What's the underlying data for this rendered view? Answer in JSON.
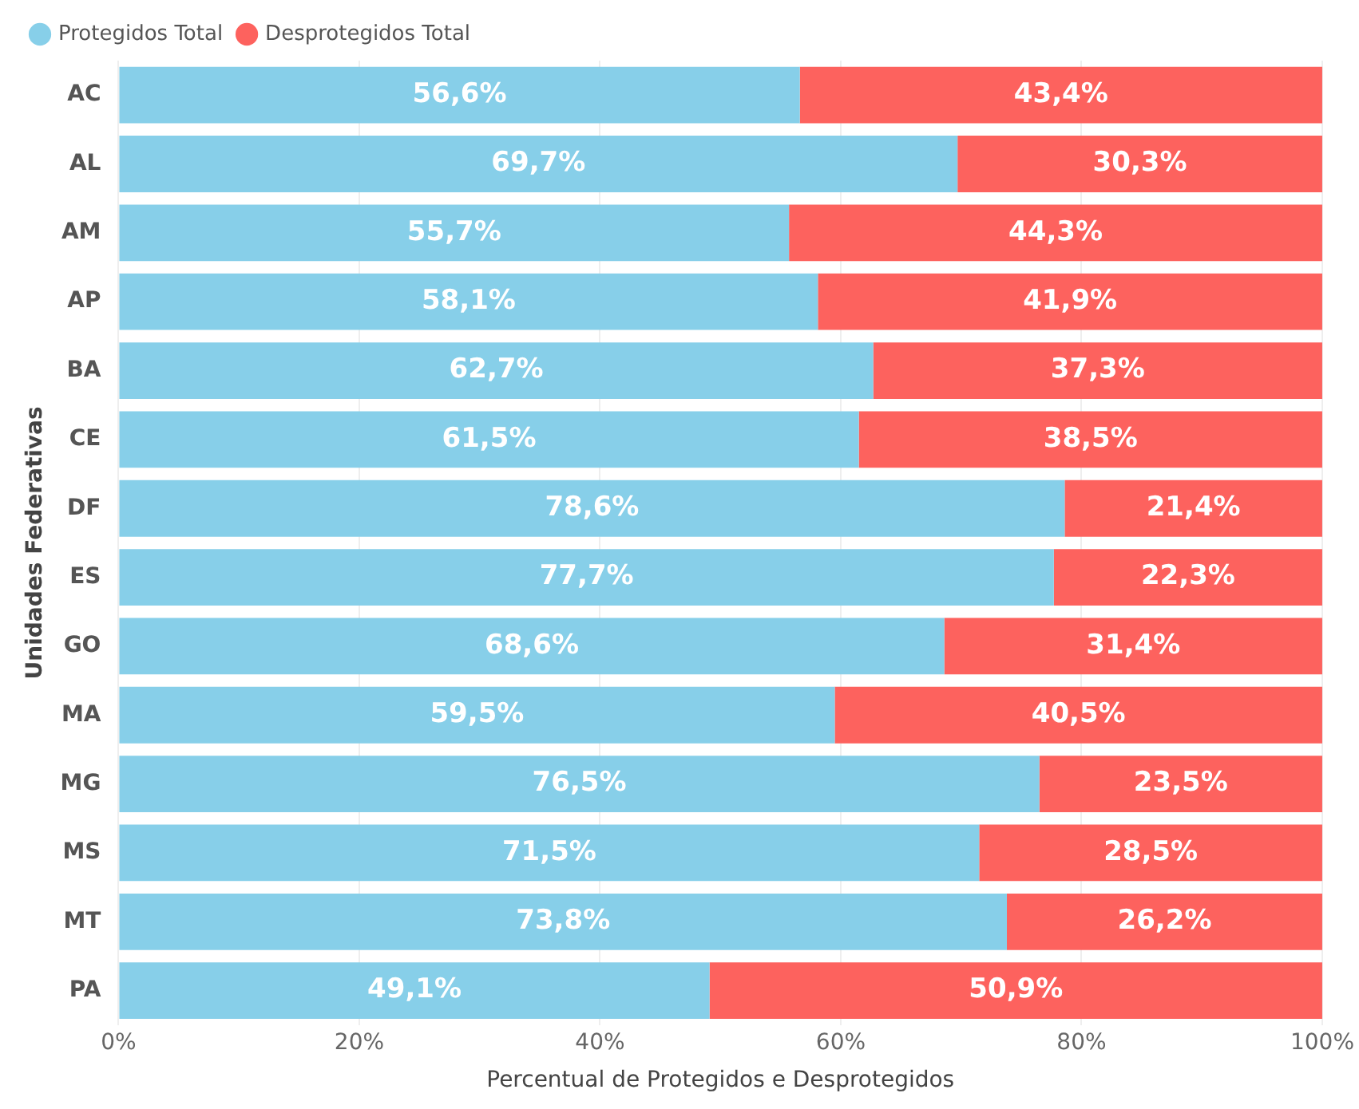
{
  "chart_data": {
    "type": "bar",
    "orientation": "horizontal",
    "stacked": true,
    "xlabel": "Percentual de Protegidos e Desprotegidos",
    "ylabel": "Unidades Federativas",
    "categories": [
      "AC",
      "AL",
      "AM",
      "AP",
      "BA",
      "CE",
      "DF",
      "ES",
      "GO",
      "MA",
      "MG",
      "MS",
      "MT",
      "PA"
    ],
    "series": [
      {
        "name": "Protegidos Total",
        "color": "#87cfe9",
        "values": [
          56.6,
          69.7,
          55.7,
          58.1,
          62.7,
          61.5,
          78.6,
          77.7,
          68.6,
          59.5,
          76.5,
          71.5,
          73.8,
          49.1
        ],
        "value_labels": [
          "56,6%",
          "69,7%",
          "55,7%",
          "58,1%",
          "62,7%",
          "61,5%",
          "78,6%",
          "77,7%",
          "68,6%",
          "59,5%",
          "76,5%",
          "71,5%",
          "73,8%",
          "49,1%"
        ]
      },
      {
        "name": "Desprotegidos Total",
        "color": "#fd625e",
        "values": [
          43.4,
          30.3,
          44.3,
          41.9,
          37.3,
          38.5,
          21.4,
          22.3,
          31.4,
          40.5,
          23.5,
          28.5,
          26.2,
          50.9
        ],
        "value_labels": [
          "43,4%",
          "30,3%",
          "44,3%",
          "41,9%",
          "37,3%",
          "38,5%",
          "21,4%",
          "22,3%",
          "31,4%",
          "40,5%",
          "23,5%",
          "28,5%",
          "26,2%",
          "50,9%"
        ]
      }
    ],
    "xlim": [
      0,
      100
    ],
    "xticks": [
      {
        "value": 0,
        "label": "0%"
      },
      {
        "value": 20,
        "label": "20%"
      },
      {
        "value": 40,
        "label": "40%"
      },
      {
        "value": 60,
        "label": "60%"
      },
      {
        "value": 80,
        "label": "80%"
      },
      {
        "value": 100,
        "label": "100%"
      }
    ],
    "grid": "x",
    "legend": "top left"
  }
}
